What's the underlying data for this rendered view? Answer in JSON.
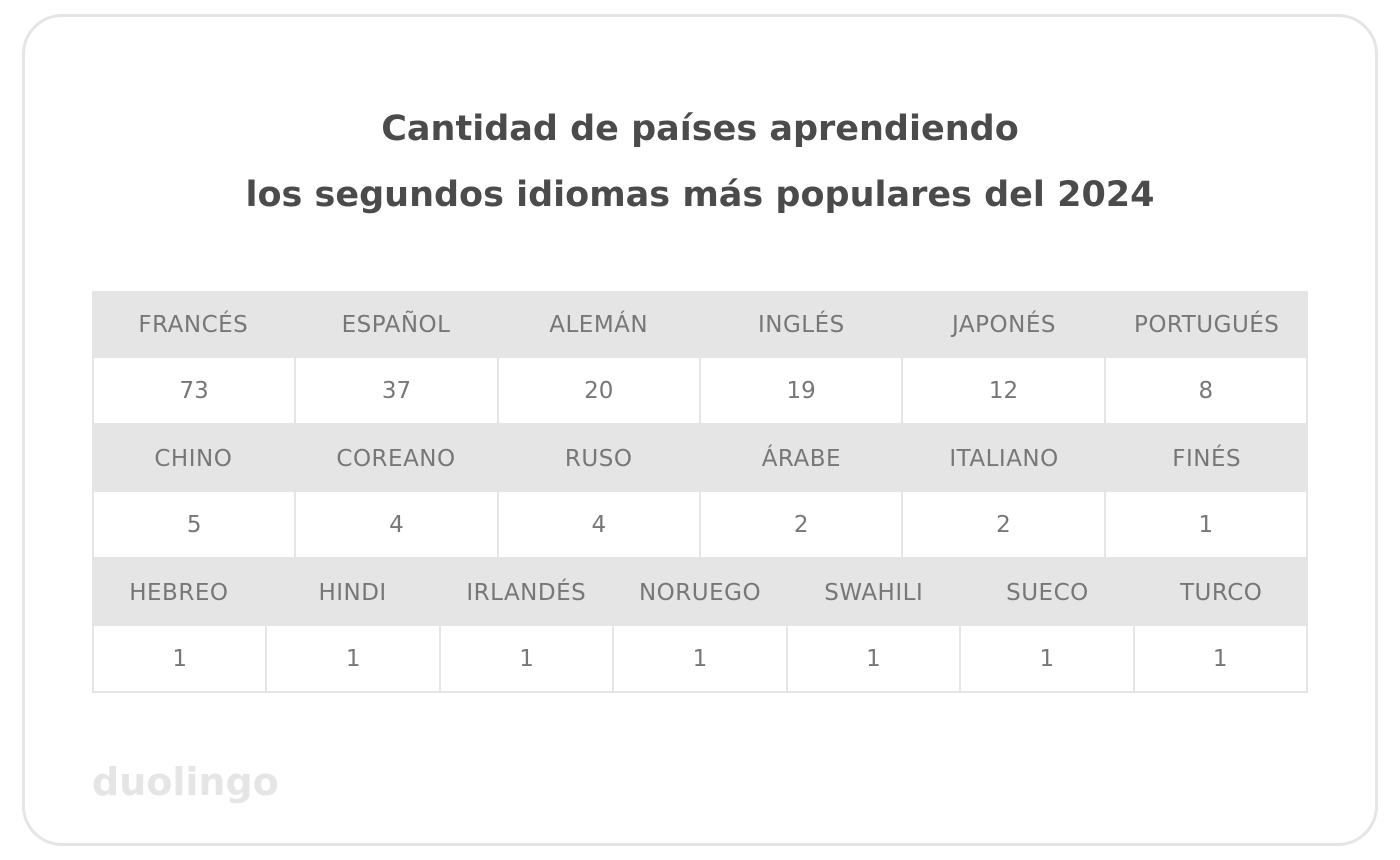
{
  "title": {
    "line1": "Cantidad de países aprendiendo",
    "line2": "los segundos idiomas más populares del 2024"
  },
  "logo_text": "duolingo",
  "colors": {
    "header_bg": "#e5e5e5",
    "text": "#777777",
    "title": "#4b4b4b",
    "border": "#e5e5e5"
  },
  "chart_data": {
    "type": "table",
    "title": "Cantidad de países aprendiendo los segundos idiomas más populares del 2024",
    "groups": [
      {
        "languages": [
          "FRANCÉS",
          "ESPAÑOL",
          "ALEMÁN",
          "INGLÉS",
          "JAPONÉS",
          "PORTUGUÉS"
        ],
        "values": [
          "73",
          "37",
          "20",
          "19",
          "12",
          "8"
        ]
      },
      {
        "languages": [
          "CHINO",
          "COREANO",
          "RUSO",
          "ÁRABE",
          "ITALIANO",
          "FINÉS"
        ],
        "values": [
          "5",
          "4",
          "4",
          "2",
          "2",
          "1"
        ]
      },
      {
        "languages": [
          "HEBREO",
          "HINDI",
          "IRLANDÉS",
          "NORUEGO",
          "SWAHILI",
          "SUECO",
          "TURCO"
        ],
        "values": [
          "1",
          "1",
          "1",
          "1",
          "1",
          "1",
          "1"
        ]
      }
    ]
  }
}
